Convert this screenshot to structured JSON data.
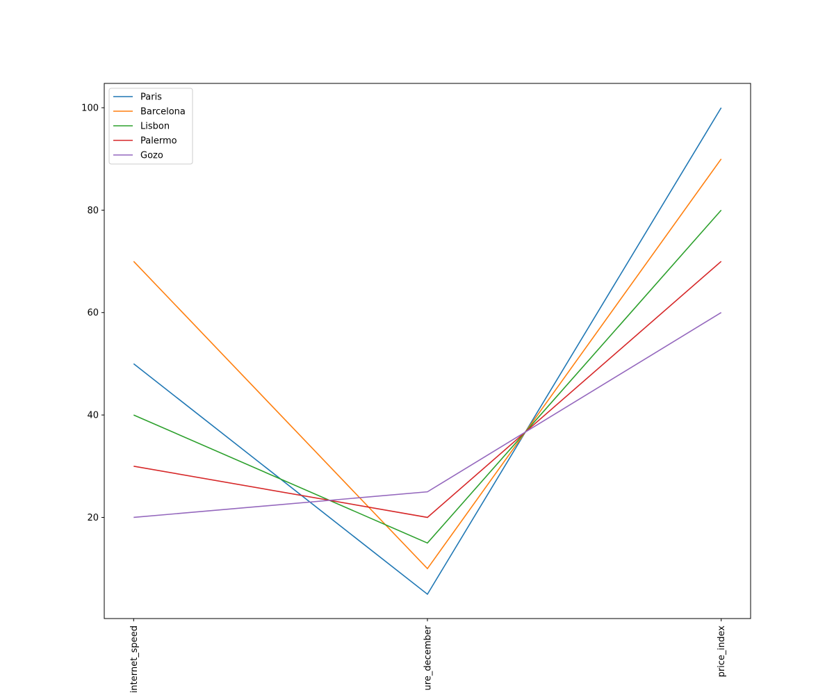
{
  "chart_data": {
    "type": "line",
    "categories": [
      "internet_speed",
      "temperature_december",
      "price_index"
    ],
    "visible_tick_labels": [
      "internet_speed",
      "ure_december",
      "price_index"
    ],
    "series": [
      {
        "name": "Paris",
        "color": "#1f77b4",
        "values": [
          50,
          5,
          100
        ]
      },
      {
        "name": "Barcelona",
        "color": "#ff7f0e",
        "values": [
          70,
          10,
          90
        ]
      },
      {
        "name": "Lisbon",
        "color": "#2ca02c",
        "values": [
          40,
          15,
          80
        ]
      },
      {
        "name": "Palermo",
        "color": "#d62728",
        "values": [
          30,
          20,
          70
        ]
      },
      {
        "name": "Gozo",
        "color": "#9467bd",
        "values": [
          20,
          25,
          60
        ]
      }
    ],
    "yticks": [
      20,
      40,
      60,
      80,
      100
    ],
    "ylim": [
      0.25,
      104.75
    ],
    "legend_position": "top-left",
    "grid": false
  }
}
